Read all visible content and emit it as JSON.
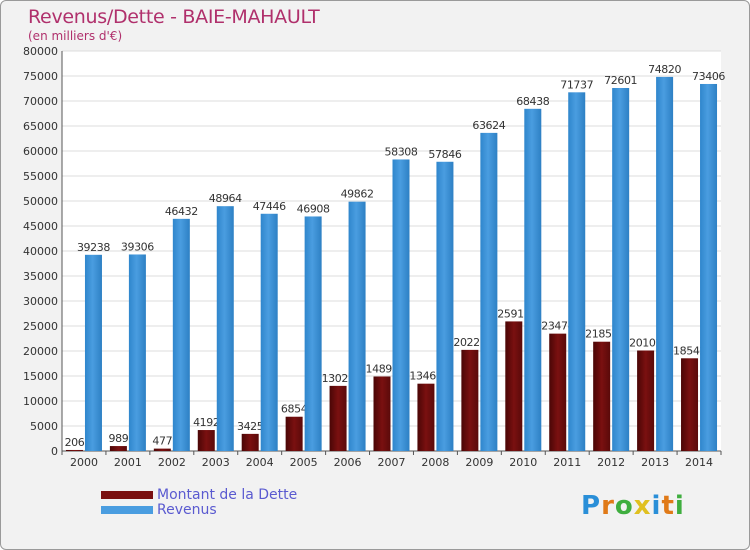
{
  "chart_data": {
    "type": "bar",
    "title": "Revenus/Dette - BAIE-MAHAULT",
    "subtitle": "(en milliers d'€)",
    "categories": [
      "2000",
      "2001",
      "2002",
      "2003",
      "2004",
      "2005",
      "2006",
      "2007",
      "2008",
      "2009",
      "2010",
      "2011",
      "2012",
      "2013",
      "2014"
    ],
    "series": [
      {
        "name": "Montant de la Dette",
        "color": "#7a1010",
        "values": [
          206,
          989,
          477,
          4192,
          3425,
          6854,
          13025,
          14897,
          13465,
          20225,
          25917,
          23474,
          21857,
          20102,
          18542
        ],
        "labels": [
          "206",
          "989",
          "477",
          "4192",
          "3425",
          "6854",
          "13025",
          "14897",
          "13465",
          "20225",
          "25917",
          "23474",
          "21857",
          "20102",
          "18542"
        ]
      },
      {
        "name": "Revenus",
        "color": "#4a9de0",
        "values": [
          39238,
          39306,
          46432,
          48964,
          47446,
          46908,
          49862,
          58308,
          57846,
          63624,
          68438,
          71737,
          72601,
          74820,
          73406
        ],
        "labels": [
          "39238",
          "39306",
          "46432",
          "48964",
          "47446",
          "46908",
          "49862",
          "58308",
          "57846",
          "63624",
          "68438",
          "71737",
          "72601",
          "74820",
          "73406"
        ]
      }
    ],
    "ylim": [
      0,
      80000
    ],
    "yticks": [
      0,
      5000,
      10000,
      15000,
      20000,
      25000,
      30000,
      35000,
      40000,
      45000,
      50000,
      55000,
      60000,
      65000,
      70000,
      75000,
      80000
    ],
    "ytick_labels": [
      "0",
      "5000",
      "10000",
      "15000",
      "20000",
      "25000",
      "30000",
      "35000",
      "40000",
      "45000",
      "50000",
      "55000",
      "60000",
      "65000",
      "70000",
      "75000",
      "80000"
    ],
    "grid": true,
    "legend_position": "bottom-left",
    "xlabel": "",
    "ylabel": ""
  },
  "logo": {
    "letters": [
      "P",
      "r",
      "o",
      "x",
      "i",
      "t",
      "i"
    ],
    "colors": [
      "#2a8fd8",
      "#e07a18",
      "#3fae3f",
      "#e0c020",
      "#2a8fd8",
      "#e07a18",
      "#3fae3f"
    ]
  }
}
